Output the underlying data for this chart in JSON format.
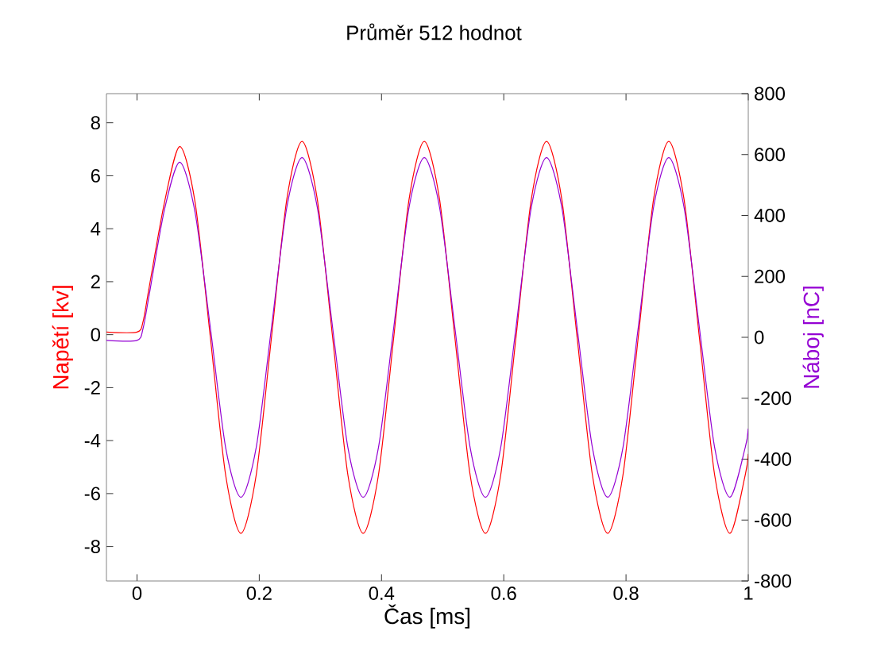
{
  "chart_data": {
    "type": "line",
    "title": "Průměr 512 hodnot",
    "xlabel": "Čas [ms]",
    "ylabel": "Napětí [kv]",
    "y2label": "Náboj [nC]",
    "x": [
      -0.05,
      0,
      0.01,
      0.02,
      0.045,
      0.07,
      0.095,
      0.12,
      0.145,
      0.17,
      0.195,
      0.22,
      0.245,
      0.27,
      0.295,
      0.32,
      0.345,
      0.37,
      0.395,
      0.42,
      0.445,
      0.47,
      0.495,
      0.52,
      0.545,
      0.57,
      0.595,
      0.62,
      0.645,
      0.67,
      0.695,
      0.72,
      0.745,
      0.77,
      0.795,
      0.82,
      0.845,
      0.87,
      0.895,
      0.92,
      0.945,
      0.97,
      0.995,
      1.0
    ],
    "series": [
      {
        "color": "#ff0000",
        "values": [
          0.1,
          0.1,
          0.5,
          1.8,
          5.0,
          7.1,
          5.0,
          -0.1,
          -5.3,
          -7.5,
          -5.3,
          -0.1,
          5.1,
          7.3,
          5.1,
          -0.1,
          -5.3,
          -7.5,
          -5.3,
          -0.1,
          5.1,
          7.3,
          5.1,
          -0.1,
          -5.3,
          -7.5,
          -5.3,
          -0.1,
          5.1,
          7.3,
          5.1,
          -0.1,
          -5.3,
          -7.5,
          -5.3,
          -0.1,
          5.1,
          7.3,
          5.1,
          -0.1,
          -5.3,
          -7.5,
          -5.3,
          -4.5
        ]
      },
      {
        "color": "#9400d3",
        "axis": "y2",
        "values": [
          -10,
          -10,
          30,
          140,
          420,
          575,
          410,
          32,
          -362,
          -525,
          -362,
          32,
          426,
          590,
          426,
          32,
          -362,
          -525,
          -362,
          32,
          426,
          590,
          426,
          32,
          -362,
          -525,
          -362,
          32,
          426,
          590,
          426,
          32,
          -362,
          -525,
          -362,
          32,
          426,
          590,
          426,
          32,
          -362,
          -525,
          -362,
          -300
        ]
      }
    ],
    "xlim": [
      -0.05,
      1
    ],
    "ylim": [
      -9.3,
      9.1
    ],
    "y2lim": [
      -800,
      800
    ],
    "xticks": [
      0,
      0.2,
      0.4,
      0.6,
      0.8,
      1
    ],
    "yticks": [
      -8,
      -6,
      -4,
      -2,
      0,
      2,
      4,
      6,
      8
    ],
    "y2ticks": [
      -800,
      -600,
      -400,
      -200,
      0,
      200,
      400,
      600,
      800
    ],
    "line_style": "solid"
  }
}
